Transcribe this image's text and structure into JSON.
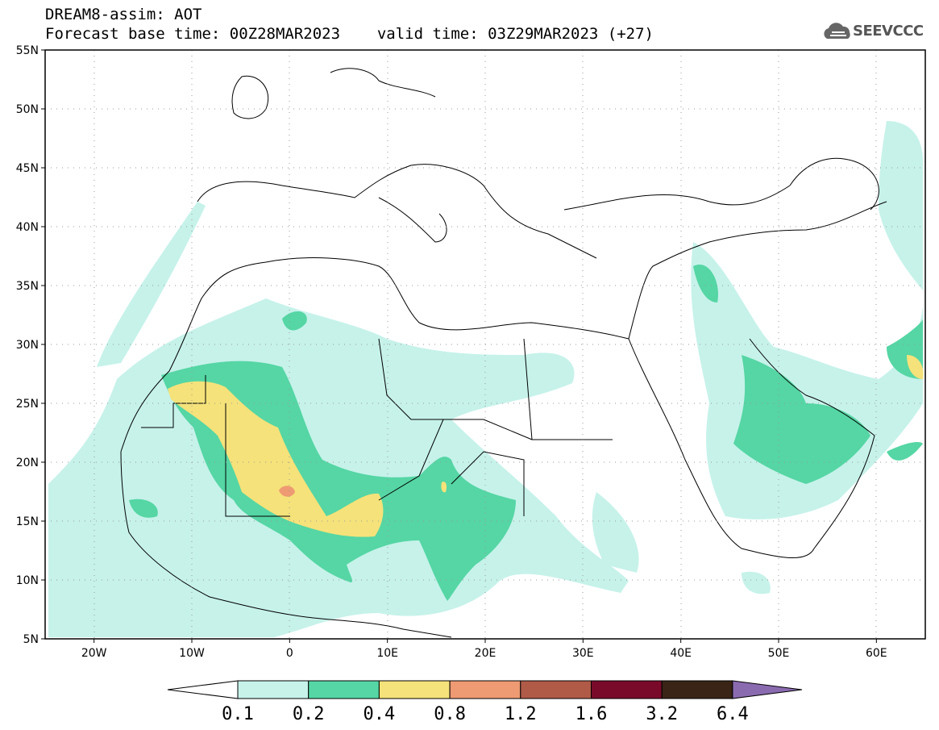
{
  "header": {
    "line1": "DREAM8-assim: AOT",
    "line2_base": "Forecast base time: 00Z28MAR2023",
    "line2_valid": "valid time: 03Z29MAR2023 (+27)"
  },
  "logo": {
    "text": "SEEVCCC",
    "icon": "cloud-logo-icon"
  },
  "map": {
    "lon_range": [
      -25,
      65
    ],
    "lat_range": [
      5,
      55
    ],
    "lat_ticks": [
      "5N",
      "10N",
      "15N",
      "20N",
      "25N",
      "30N",
      "35N",
      "40N",
      "45N",
      "50N",
      "55N"
    ],
    "lon_ticks": [
      "20W",
      "10W",
      "0",
      "10E",
      "20E",
      "30E",
      "40E",
      "50E",
      "60E"
    ],
    "grid": "dotted"
  },
  "colorbar": {
    "labels": [
      "0.1",
      "0.2",
      "0.4",
      "0.8",
      "1.2",
      "1.6",
      "3.2",
      "6.4"
    ],
    "colors": [
      "#c6f2ea",
      "#55d6a4",
      "#f5e27a",
      "#ee9a72",
      "#b05a48",
      "#7a0a2a",
      "#3a2416",
      "#8b6bb0"
    ]
  }
}
